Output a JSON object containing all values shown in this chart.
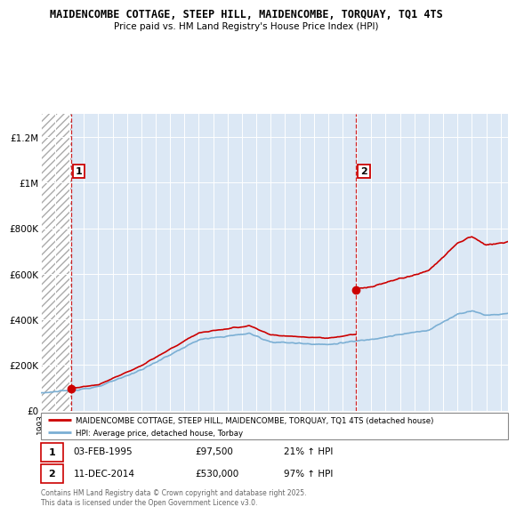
{
  "title_line1": "MAIDENCOMBE COTTAGE, STEEP HILL, MAIDENCOMBE, TORQUAY, TQ1 4TS",
  "title_line2": "Price paid vs. HM Land Registry's House Price Index (HPI)",
  "legend_label1": "MAIDENCOMBE COTTAGE, STEEP HILL, MAIDENCOMBE, TORQUAY, TQ1 4TS (detached house)",
  "legend_label2": "HPI: Average price, detached house, Torbay",
  "annotation1_date": "03-FEB-1995",
  "annotation1_price": "£97,500",
  "annotation1_hpi": "21% ↑ HPI",
  "annotation2_date": "11-DEC-2014",
  "annotation2_price": "£530,000",
  "annotation2_hpi": "97% ↑ HPI",
  "footer": "Contains HM Land Registry data © Crown copyright and database right 2025.\nThis data is licensed under the Open Government Licence v3.0.",
  "sale1_year": 1995.09,
  "sale1_price": 97500,
  "sale2_year": 2014.95,
  "sale2_price": 530000,
  "property_line_color": "#cc0000",
  "hpi_line_color": "#7bafd4",
  "ylim_max": 1300000,
  "xmin": 1993,
  "xmax": 2025.5
}
